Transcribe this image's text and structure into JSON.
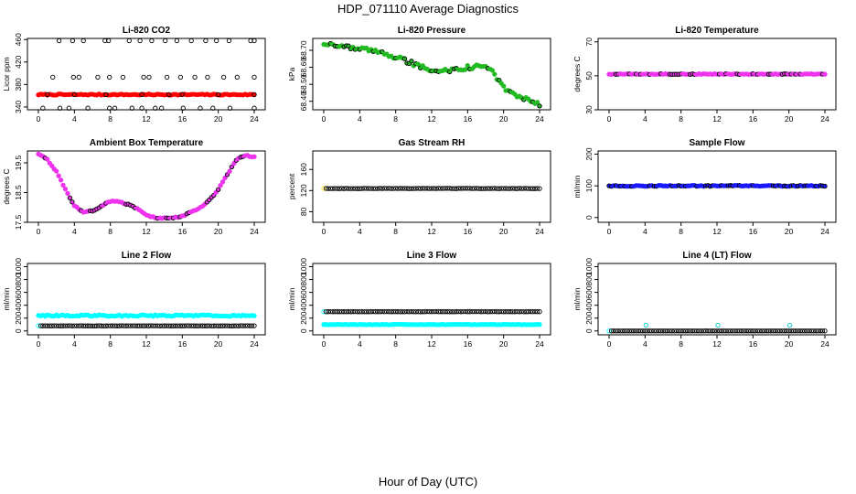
{
  "figure": {
    "title": "HDP_071110  Average Diagnostics",
    "xlabel": "Hour of Day (UTC)"
  },
  "chart_data": [
    {
      "type": "scatter",
      "title": "Li-820 CO2",
      "ylabel": "Licor ppm",
      "xlim": [
        0,
        24
      ],
      "ylim": [
        335,
        462
      ],
      "xticks": [
        0,
        4,
        8,
        12,
        16,
        20,
        24
      ],
      "yticks": [
        340,
        380,
        420,
        460
      ],
      "series": [
        {
          "name": "ambient",
          "color": "#ff0000",
          "filled": true,
          "kind": "band",
          "y": 362,
          "noise": 1
        },
        {
          "name": "high",
          "color": "#000000",
          "filled": false,
          "kind": "sparse",
          "y": 458,
          "x": [
            2.3,
            3.8,
            5.0,
            7.4,
            7.8,
            10.1,
            11.3,
            12.6,
            14.1,
            15.4,
            17.0,
            18.6,
            19.8,
            21.2,
            23.6,
            24.0
          ]
        },
        {
          "name": "mid",
          "color": "#000000",
          "filled": false,
          "kind": "sparse",
          "y": 393,
          "x": [
            1.6,
            3.9,
            4.5,
            6.6,
            7.9,
            9.4,
            11.7,
            12.3,
            14.3,
            15.8,
            17.4,
            18.8,
            20.6,
            22.1,
            24.0
          ]
        },
        {
          "name": "low",
          "color": "#000000",
          "filled": false,
          "kind": "sparse",
          "y": 338,
          "x": [
            0.5,
            2.4,
            3.4,
            5.5,
            7.9,
            8.5,
            10.4,
            11.5,
            13.0,
            13.7,
            16.1,
            18.0,
            19.4,
            21.3,
            24.0
          ]
        },
        {
          "name": "ref",
          "color": "#000000",
          "filled": false,
          "kind": "sparse",
          "y": 362,
          "x": [
            1.0,
            4.0,
            7.5,
            11.5,
            14.5,
            16.0,
            20.0,
            24.0
          ]
        }
      ]
    },
    {
      "type": "scatter",
      "title": "Li-820 Pressure",
      "ylabel": "kPa",
      "xlim": [
        0,
        24
      ],
      "ylim": [
        68.35,
        68.77
      ],
      "xticks": [
        0,
        4,
        8,
        12,
        16,
        20,
        24
      ],
      "yticks": [
        68.4,
        68.5,
        68.6,
        68.7
      ],
      "ytick_labels": [
        "68.40",
        "68.50",
        "68.60",
        "68.70"
      ],
      "series": [
        {
          "name": "pressure",
          "color": "#22bb22",
          "filled": true,
          "outline": "#000000",
          "kind": "curve",
          "noise": 0.012,
          "profile": [
            [
              0,
              68.74
            ],
            [
              2,
              68.72
            ],
            [
              4,
              68.71
            ],
            [
              6,
              68.69
            ],
            [
              8,
              68.66
            ],
            [
              10,
              68.62
            ],
            [
              12,
              68.58
            ],
            [
              14,
              68.58
            ],
            [
              16,
              68.6
            ],
            [
              18,
              68.61
            ],
            [
              19,
              68.56
            ],
            [
              20,
              68.48
            ],
            [
              21,
              68.44
            ],
            [
              22,
              68.42
            ],
            [
              24,
              68.38
            ]
          ]
        }
      ]
    },
    {
      "type": "scatter",
      "title": "Li-820 Temperature",
      "ylabel": "degrees C",
      "xlim": [
        0,
        24
      ],
      "ylim": [
        30,
        72
      ],
      "xticks": [
        0,
        4,
        8,
        12,
        16,
        20,
        24
      ],
      "yticks": [
        30,
        50,
        70
      ],
      "series": [
        {
          "name": "temperature",
          "color": "#ee33ee",
          "filled": true,
          "outline": "#000000",
          "kind": "band",
          "y": 51,
          "noise": 0.2
        }
      ]
    },
    {
      "type": "scatter",
      "title": "Ambient Box Temperature",
      "ylabel": "degrees C",
      "xlim": [
        0,
        24
      ],
      "ylim": [
        17.5,
        19.9
      ],
      "xticks": [
        0,
        4,
        8,
        12,
        16,
        20,
        24
      ],
      "yticks": [
        17.5,
        18.5,
        19.5
      ],
      "series": [
        {
          "name": "box-temperature",
          "color": "#ee33ee",
          "filled": true,
          "outline": "#000000",
          "kind": "curve",
          "noise": 0.02,
          "profile": [
            [
              0,
              19.8
            ],
            [
              1,
              19.6
            ],
            [
              2,
              19.2
            ],
            [
              3,
              18.6
            ],
            [
              4,
              18.05
            ],
            [
              5,
              17.85
            ],
            [
              6,
              17.88
            ],
            [
              7,
              18.05
            ],
            [
              8,
              18.2
            ],
            [
              9,
              18.2
            ],
            [
              10,
              18.1
            ],
            [
              11,
              17.95
            ],
            [
              12,
              17.75
            ],
            [
              13,
              17.65
            ],
            [
              14,
              17.65
            ],
            [
              15,
              17.65
            ],
            [
              16,
              17.7
            ],
            [
              17,
              17.85
            ],
            [
              18,
              18.0
            ],
            [
              19,
              18.25
            ],
            [
              20,
              18.6
            ],
            [
              21,
              19.1
            ],
            [
              22,
              19.6
            ],
            [
              23,
              19.75
            ],
            [
              24,
              19.7
            ]
          ]
        }
      ]
    },
    {
      "type": "scatter",
      "title": "Gas Stream RH",
      "ylabel": "percent",
      "xlim": [
        0,
        24
      ],
      "ylim": [
        60,
        195
      ],
      "xticks": [
        0,
        4,
        8,
        12,
        16,
        20,
        24
      ],
      "yticks": [
        80,
        120,
        160
      ],
      "series": [
        {
          "name": "rh",
          "color": "#000000",
          "filled": false,
          "kind": "band",
          "y": 124,
          "noise": 0.3,
          "first_color": "#ffd700"
        }
      ]
    },
    {
      "type": "scatter",
      "title": "Sample Flow",
      "ylabel": "ml/min",
      "xlim": [
        0,
        24
      ],
      "ylim": [
        -15,
        210
      ],
      "xticks": [
        0,
        4,
        8,
        12,
        16,
        20,
        24
      ],
      "yticks": [
        0,
        100,
        200
      ],
      "series": [
        {
          "name": "sample-flow",
          "color": "#1a1aff",
          "filled": true,
          "outline": "#000000",
          "kind": "band",
          "y": 100,
          "noise": 1.5
        }
      ]
    },
    {
      "type": "scatter",
      "title": "Line 2 Flow",
      "ylabel": "ml/min",
      "xlim": [
        0,
        24
      ],
      "ylim": [
        -60,
        1050
      ],
      "xticks": [
        0,
        4,
        8,
        12,
        16,
        20,
        24
      ],
      "yticks": [
        0,
        200,
        400,
        600,
        800,
        1000
      ],
      "series": [
        {
          "name": "line2-a",
          "color": "#00ffff",
          "filled": true,
          "kind": "band",
          "y": 240,
          "noise": 12
        },
        {
          "name": "line2-b",
          "color": "#000000",
          "filled": false,
          "kind": "band",
          "y": 80,
          "noise": 2,
          "first_color": "#00ffff"
        }
      ]
    },
    {
      "type": "scatter",
      "title": "Line 3 Flow",
      "ylabel": "ml/min",
      "xlim": [
        0,
        24
      ],
      "ylim": [
        -60,
        1050
      ],
      "xticks": [
        0,
        4,
        8,
        12,
        16,
        20,
        24
      ],
      "yticks": [
        0,
        200,
        400,
        600,
        800,
        1000
      ],
      "series": [
        {
          "name": "line3-a",
          "color": "#000000",
          "filled": false,
          "kind": "band",
          "y": 300,
          "noise": 2,
          "first_color": "#00ffff"
        },
        {
          "name": "line3-b",
          "color": "#00ffff",
          "filled": true,
          "kind": "band",
          "y": 100,
          "noise": 4
        }
      ]
    },
    {
      "type": "scatter",
      "title": "Line 4 (LT) Flow",
      "ylabel": "ml/min",
      "xlim": [
        0,
        24
      ],
      "ylim": [
        -60,
        1050
      ],
      "xticks": [
        0,
        4,
        8,
        12,
        16,
        20,
        24
      ],
      "yticks": [
        0,
        200,
        400,
        600,
        800,
        1000
      ],
      "series": [
        {
          "name": "line4-a",
          "color": "#000000",
          "filled": false,
          "kind": "band",
          "y": 0,
          "noise": 0.5,
          "first_color": "#00ffff"
        },
        {
          "name": "line4-spikes",
          "color": "#00cccc",
          "filled": false,
          "kind": "sparse",
          "y": 90,
          "x": [
            4.1,
            12.1,
            20.1
          ]
        }
      ]
    }
  ]
}
